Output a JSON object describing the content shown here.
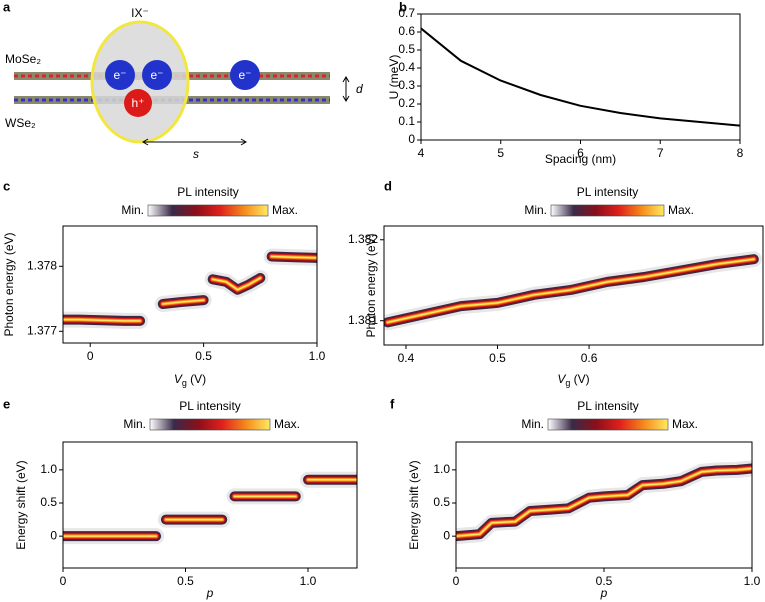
{
  "schematic": {
    "panel_label": "a",
    "title": "IX⁻",
    "top_layer": "MoSe₂",
    "bottom_layer": "WSe₂",
    "electron": "e⁻",
    "hole": "h⁺",
    "interlayer": "d",
    "spacing": "s"
  },
  "chart_data": [
    {
      "type": "line",
      "panel_label": "b",
      "x_label": "Spacing (nm)",
      "y_label": "U (meV)",
      "x": [
        4,
        4.5,
        5,
        5.5,
        6,
        6.5,
        7,
        7.5,
        8
      ],
      "series": [
        {
          "color": "#000000",
          "values": [
            0.62,
            0.44,
            0.33,
            0.25,
            0.19,
            0.15,
            0.12,
            0.1,
            0.08
          ]
        }
      ],
      "xlim": [
        4,
        8
      ],
      "xticks": [
        4,
        5,
        6,
        7,
        8
      ],
      "ylim": [
        0,
        0.7
      ],
      "yticks": [
        0,
        0.1,
        0.2,
        0.3,
        0.4,
        0.5,
        0.6,
        0.7
      ]
    },
    {
      "type": "line",
      "panel_label": "c",
      "x_label": {
        "symbol": "V",
        "subscript": "g",
        "unit": " (V)"
      },
      "y_label": "Photon energy (eV)",
      "colorbar": {
        "title": "PL intensity",
        "min": "Min.",
        "max": "Max."
      },
      "colormap": [
        "#ffffff",
        "#3a2a4a",
        "#8a0f1a",
        "#e0201c",
        "#f58a1b",
        "#ffea60"
      ],
      "x": [
        -0.12,
        -0.05,
        0.05,
        0.15,
        0.22,
        null,
        0.32,
        0.4,
        0.5,
        null,
        0.54,
        0.6,
        0.65,
        0.7,
        0.75,
        null,
        0.8,
        0.9,
        1.0
      ],
      "series": [
        {
          "values": [
            1.37718,
            1.37718,
            1.37717,
            1.37716,
            1.37716,
            null,
            1.37742,
            1.37745,
            1.37748,
            null,
            1.3778,
            1.37776,
            1.37764,
            1.37772,
            1.37782,
            null,
            1.37815,
            1.37814,
            1.37813
          ]
        }
      ],
      "xlim": [
        -0.12,
        1.0
      ],
      "xticks": [
        0,
        0.5,
        {
          "value": 1,
          "label": "1.0"
        }
      ],
      "ylim": [
        1.37682,
        1.37862
      ],
      "yticks": [
        1.377,
        1.378
      ]
    },
    {
      "type": "line",
      "panel_label": "d",
      "x_label": {
        "symbol": "V",
        "subscript": "g",
        "unit": " (V)"
      },
      "y_label": "Photon energy (eV)",
      "colorbar": {
        "title": "PL intensity",
        "min": "Min.",
        "max": "Max."
      },
      "colormap": [
        "#ffffff",
        "#3a2a4a",
        "#8a0f1a",
        "#e0201c",
        "#f58a1b",
        "#ffea60"
      ],
      "x": [
        0.38,
        0.42,
        0.46,
        0.5,
        0.54,
        0.58,
        0.62,
        0.66,
        0.7,
        0.74,
        0.78
      ],
      "series": [
        {
          "values": [
            1.38098,
            1.38108,
            1.38118,
            1.38122,
            1.38132,
            1.38138,
            1.38148,
            1.38154,
            1.38162,
            1.3817,
            1.38176
          ]
        }
      ],
      "xlim": [
        0.376,
        0.79
      ],
      "xticks": [
        0.4,
        0.5,
        0.6
      ],
      "ylim": [
        1.3807,
        1.38217
      ],
      "yticks": [
        1.381,
        1.382
      ]
    },
    {
      "type": "line",
      "panel_label": "e",
      "x_label": "p",
      "y_label": "Energy shift (eV)",
      "colorbar": {
        "title": "PL intensity",
        "min": "Min.",
        "max": "Max."
      },
      "colormap": [
        "#ffffff",
        "#3a2a4a",
        "#8a0f1a",
        "#e0201c",
        "#f58a1b",
        "#ffea60"
      ],
      "x": [
        0,
        0.2,
        0.38,
        null,
        0.42,
        0.55,
        0.65,
        null,
        0.7,
        0.82,
        0.95,
        null,
        1.0,
        1.1,
        1.2
      ],
      "series": [
        {
          "values": [
            0,
            0,
            0,
            null,
            0.25,
            0.25,
            0.25,
            null,
            0.6,
            0.6,
            0.6,
            null,
            0.85,
            0.85,
            0.85
          ]
        }
      ],
      "xlim": [
        0,
        1.2
      ],
      "xticks": [
        0,
        0.5,
        {
          "value": 1,
          "label": "1.0"
        }
      ],
      "ylim": [
        -0.48,
        1.42
      ],
      "yticks": [
        0,
        0.5,
        {
          "value": 1,
          "label": "1.0"
        }
      ]
    },
    {
      "type": "line",
      "panel_label": "f",
      "x_label": "p",
      "y_label": "Energy shift (eV)",
      "colorbar": {
        "title": "PL intensity",
        "min": "Min.",
        "max": "Max."
      },
      "colormap": [
        "#ffffff",
        "#3a2a4a",
        "#8a0f1a",
        "#e0201c",
        "#f58a1b",
        "#ffea60"
      ],
      "x": [
        0,
        0.08,
        0.12,
        0.2,
        0.25,
        0.32,
        0.38,
        0.45,
        0.5,
        0.58,
        0.63,
        0.7,
        0.76,
        0.83,
        0.88,
        0.95,
        1.0
      ],
      "series": [
        {
          "values": [
            0,
            0.03,
            0.2,
            0.22,
            0.38,
            0.4,
            0.42,
            0.58,
            0.6,
            0.62,
            0.77,
            0.79,
            0.83,
            0.97,
            0.99,
            1.0,
            1.02
          ]
        }
      ],
      "xlim": [
        0,
        1
      ],
      "xticks": [
        0,
        0.5,
        {
          "value": 1,
          "label": "1.0"
        }
      ],
      "ylim": [
        -0.48,
        1.42
      ],
      "yticks": [
        0,
        0.5,
        {
          "value": 1,
          "label": "1.0"
        }
      ]
    }
  ]
}
